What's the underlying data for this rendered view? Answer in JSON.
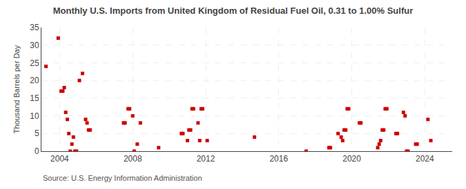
{
  "chart_data": {
    "type": "scatter",
    "title": "Monthly U.S. Imports from United Kingdom of Residual Fuel Oil, 0.31 to 1.00% Sulfur",
    "ylabel": "Thousand Barrels per Day",
    "annotations": [
      "Source: U.S. Energy Information Administration"
    ],
    "color": "#cc0000",
    "marker": "square",
    "grid": true,
    "xlim": [
      2003.0,
      2025.5
    ],
    "xticks": [
      2004,
      2008,
      2012,
      2016,
      2020,
      2024
    ],
    "ylim": [
      0,
      35
    ],
    "yticks": [
      0,
      5,
      10,
      15,
      20,
      25,
      30,
      35
    ],
    "x": [
      2003.25,
      2003.92,
      2004.08,
      2004.17,
      2004.25,
      2004.33,
      2004.42,
      2004.5,
      2004.58,
      2004.67,
      2004.75,
      2004.83,
      2004.92,
      2005.08,
      2005.25,
      2005.42,
      2005.5,
      2005.58,
      2005.67,
      2007.5,
      2007.58,
      2007.75,
      2007.83,
      2008.0,
      2008.08,
      2008.25,
      2008.42,
      2009.42,
      2010.67,
      2010.75,
      2011.0,
      2011.08,
      2011.17,
      2011.25,
      2011.33,
      2011.58,
      2011.67,
      2011.75,
      2011.83,
      2012.08,
      2014.67,
      2017.5,
      2018.75,
      2018.83,
      2019.25,
      2019.42,
      2019.5,
      2019.58,
      2019.67,
      2019.75,
      2019.83,
      2020.42,
      2020.5,
      2021.42,
      2021.5,
      2021.58,
      2021.67,
      2021.75,
      2021.83,
      2021.92,
      2022.42,
      2022.5,
      2022.83,
      2022.92,
      2023.0,
      2023.08,
      2023.5,
      2023.58,
      2024.17,
      2024.33
    ],
    "values": [
      24,
      32,
      17,
      17,
      18,
      11,
      9,
      5,
      0,
      2,
      4,
      0,
      0,
      20,
      22,
      9,
      8,
      6,
      6,
      8,
      8,
      12,
      12,
      10,
      0,
      2,
      8,
      1,
      5,
      5,
      3,
      6,
      6,
      12,
      12,
      8,
      3,
      12,
      12,
      3,
      4,
      0,
      1,
      1,
      5,
      4,
      3,
      6,
      6,
      12,
      12,
      8,
      8,
      1,
      2,
      3,
      6,
      6,
      12,
      12,
      5,
      5,
      11,
      10,
      0,
      0,
      2,
      2,
      9,
      3
    ]
  }
}
